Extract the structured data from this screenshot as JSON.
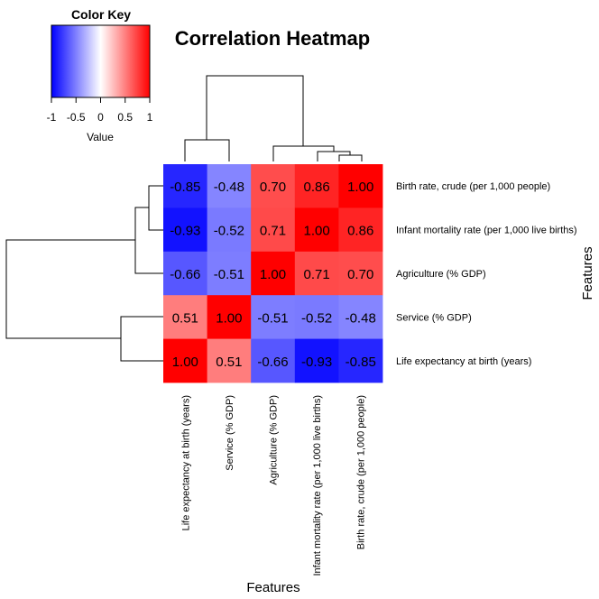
{
  "colors": {
    "low": "#0000FF",
    "mid": "#FFFFFF",
    "high": "#FF0000",
    "text": "#000000",
    "dendrogram": "#000000"
  },
  "color_key": {
    "title": "Color Key",
    "xlabel": "Value",
    "ticks": [
      "-1",
      "-0.5",
      "0",
      "0.5",
      "1"
    ]
  },
  "chart_data": {
    "type": "heatmap",
    "title": "Correlation Heatmap",
    "xlabel": "Features",
    "ylabel": "Features",
    "value_range": [
      -1,
      1
    ],
    "row_labels": [
      "Birth rate, crude (per 1,000 people)",
      "Infant mortality rate (per 1,000 live births)",
      "Agriculture (% GDP)",
      "Service (% GDP)",
      "Life expectancy at birth (years)"
    ],
    "col_labels": [
      "Life expectancy at birth (years)",
      "Service (% GDP)",
      "Agriculture (% GDP)",
      "Infant mortality rate (per 1,000 live births)",
      "Birth rate, crude (per 1,000 people)"
    ],
    "cells": [
      [
        "-0.85",
        "-0.48",
        "0.70",
        "0.86",
        "1.00"
      ],
      [
        "-0.93",
        "-0.52",
        "0.71",
        "1.00",
        "0.86"
      ],
      [
        "-0.66",
        "-0.51",
        "1.00",
        "0.71",
        "0.70"
      ],
      [
        "0.51",
        "1.00",
        "-0.51",
        "-0.52",
        "-0.48"
      ],
      [
        "1.00",
        "0.51",
        "-0.66",
        "-0.93",
        "-0.85"
      ]
    ]
  }
}
